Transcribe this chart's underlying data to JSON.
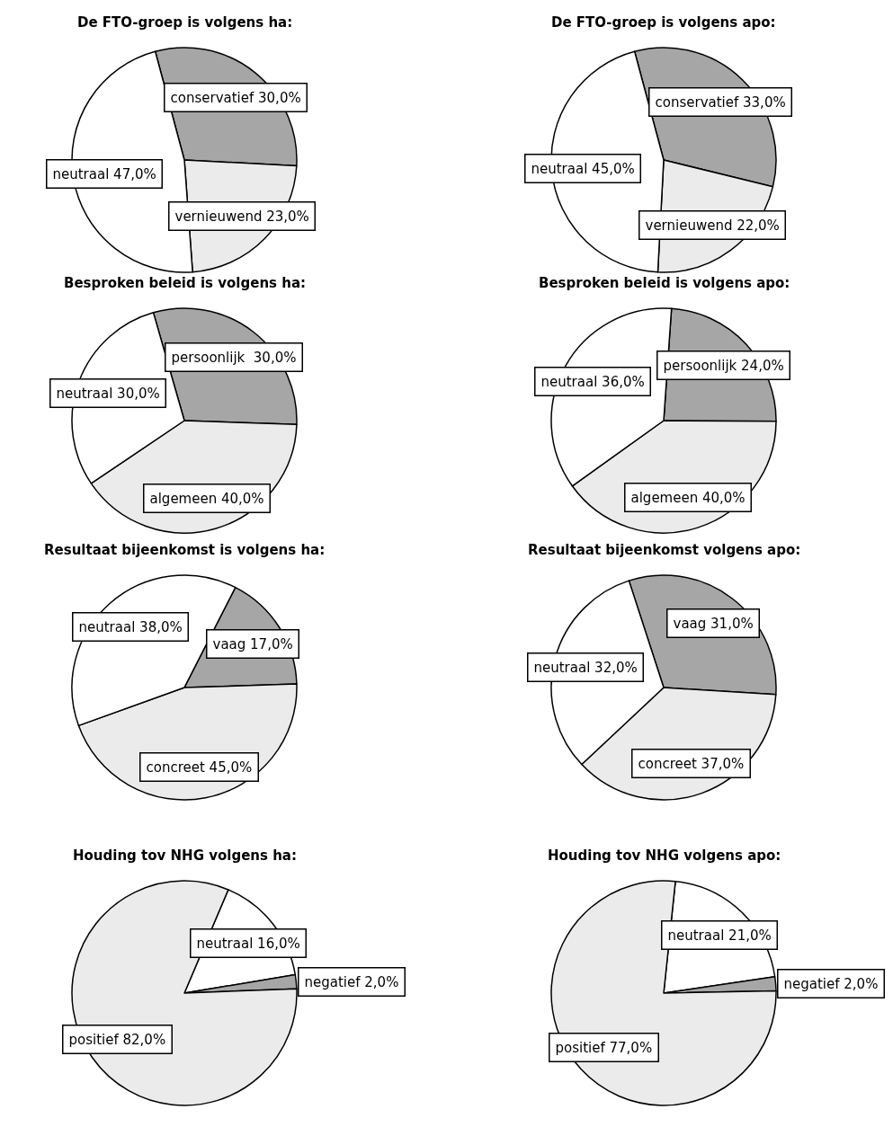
{
  "chart_data": [
    {
      "type": "pie",
      "title": "De FTO-groep is volgens ha:",
      "categories": [
        "conservatief",
        "vernieuwend",
        "neutraal"
      ],
      "values": [
        30,
        23,
        47
      ],
      "value_labels": [
        "30,0%",
        "23,0%",
        "47,0%"
      ],
      "colors": [
        "#a6a6a6",
        "#ebebeb",
        "#ffffff"
      ]
    },
    {
      "type": "pie",
      "title": "De FTO-groep is volgens apo:",
      "categories": [
        "conservatief",
        "vernieuwend",
        "neutraal"
      ],
      "values": [
        33,
        22,
        45
      ],
      "value_labels": [
        "33,0%",
        "22,0%",
        "45,0%"
      ],
      "colors": [
        "#a6a6a6",
        "#ebebeb",
        "#ffffff"
      ]
    },
    {
      "type": "pie",
      "title": "Besproken beleid is volgens ha:",
      "categories": [
        "persoonlijk ",
        "algemeen",
        "neutraal"
      ],
      "values": [
        30,
        40,
        30
      ],
      "value_labels": [
        "30,0%",
        "40,0%",
        "30,0%"
      ],
      "colors": [
        "#a6a6a6",
        "#ebebeb",
        "#ffffff"
      ]
    },
    {
      "type": "pie",
      "title": "Besproken beleid is volgens apo:",
      "categories": [
        "persoonlijk",
        "algemeen",
        "neutraal"
      ],
      "values": [
        24,
        40,
        36
      ],
      "value_labels": [
        "24,0%",
        "40,0%",
        "36,0%"
      ],
      "colors": [
        "#a6a6a6",
        "#ebebeb",
        "#ffffff"
      ]
    },
    {
      "type": "pie",
      "title": "Resultaat bijeenkomst is volgens ha:",
      "categories": [
        "vaag",
        "concreet",
        "neutraal"
      ],
      "values": [
        17,
        45,
        38
      ],
      "value_labels": [
        "17,0%",
        "45,0%",
        "38,0%"
      ],
      "colors": [
        "#a6a6a6",
        "#ebebeb",
        "#ffffff"
      ]
    },
    {
      "type": "pie",
      "title": "Resultaat bijeenkomst volgens apo:",
      "categories": [
        "vaag",
        "concreet",
        "neutraal"
      ],
      "values": [
        31,
        37,
        32
      ],
      "value_labels": [
        "31,0%",
        "37,0%",
        "32,0%"
      ],
      "colors": [
        "#a6a6a6",
        "#ebebeb",
        "#ffffff"
      ]
    },
    {
      "type": "pie",
      "title": "Houding tov NHG volgens ha:",
      "categories": [
        "neutraal",
        "negatief",
        "positief"
      ],
      "values": [
        16,
        2,
        82
      ],
      "value_labels": [
        "16,0%",
        "2,0%",
        "82,0%"
      ],
      "colors": [
        "#ffffff",
        "#a6a6a6",
        "#ebebeb"
      ]
    },
    {
      "type": "pie",
      "title": "Houding tov NHG volgens apo:",
      "categories": [
        "neutraal",
        "negatief",
        "positief"
      ],
      "values": [
        21,
        2,
        77
      ],
      "value_labels": [
        "21,0%",
        "2,0%",
        "77,0%"
      ],
      "colors": [
        "#ffffff",
        "#a6a6a6",
        "#ebebeb"
      ]
    }
  ]
}
